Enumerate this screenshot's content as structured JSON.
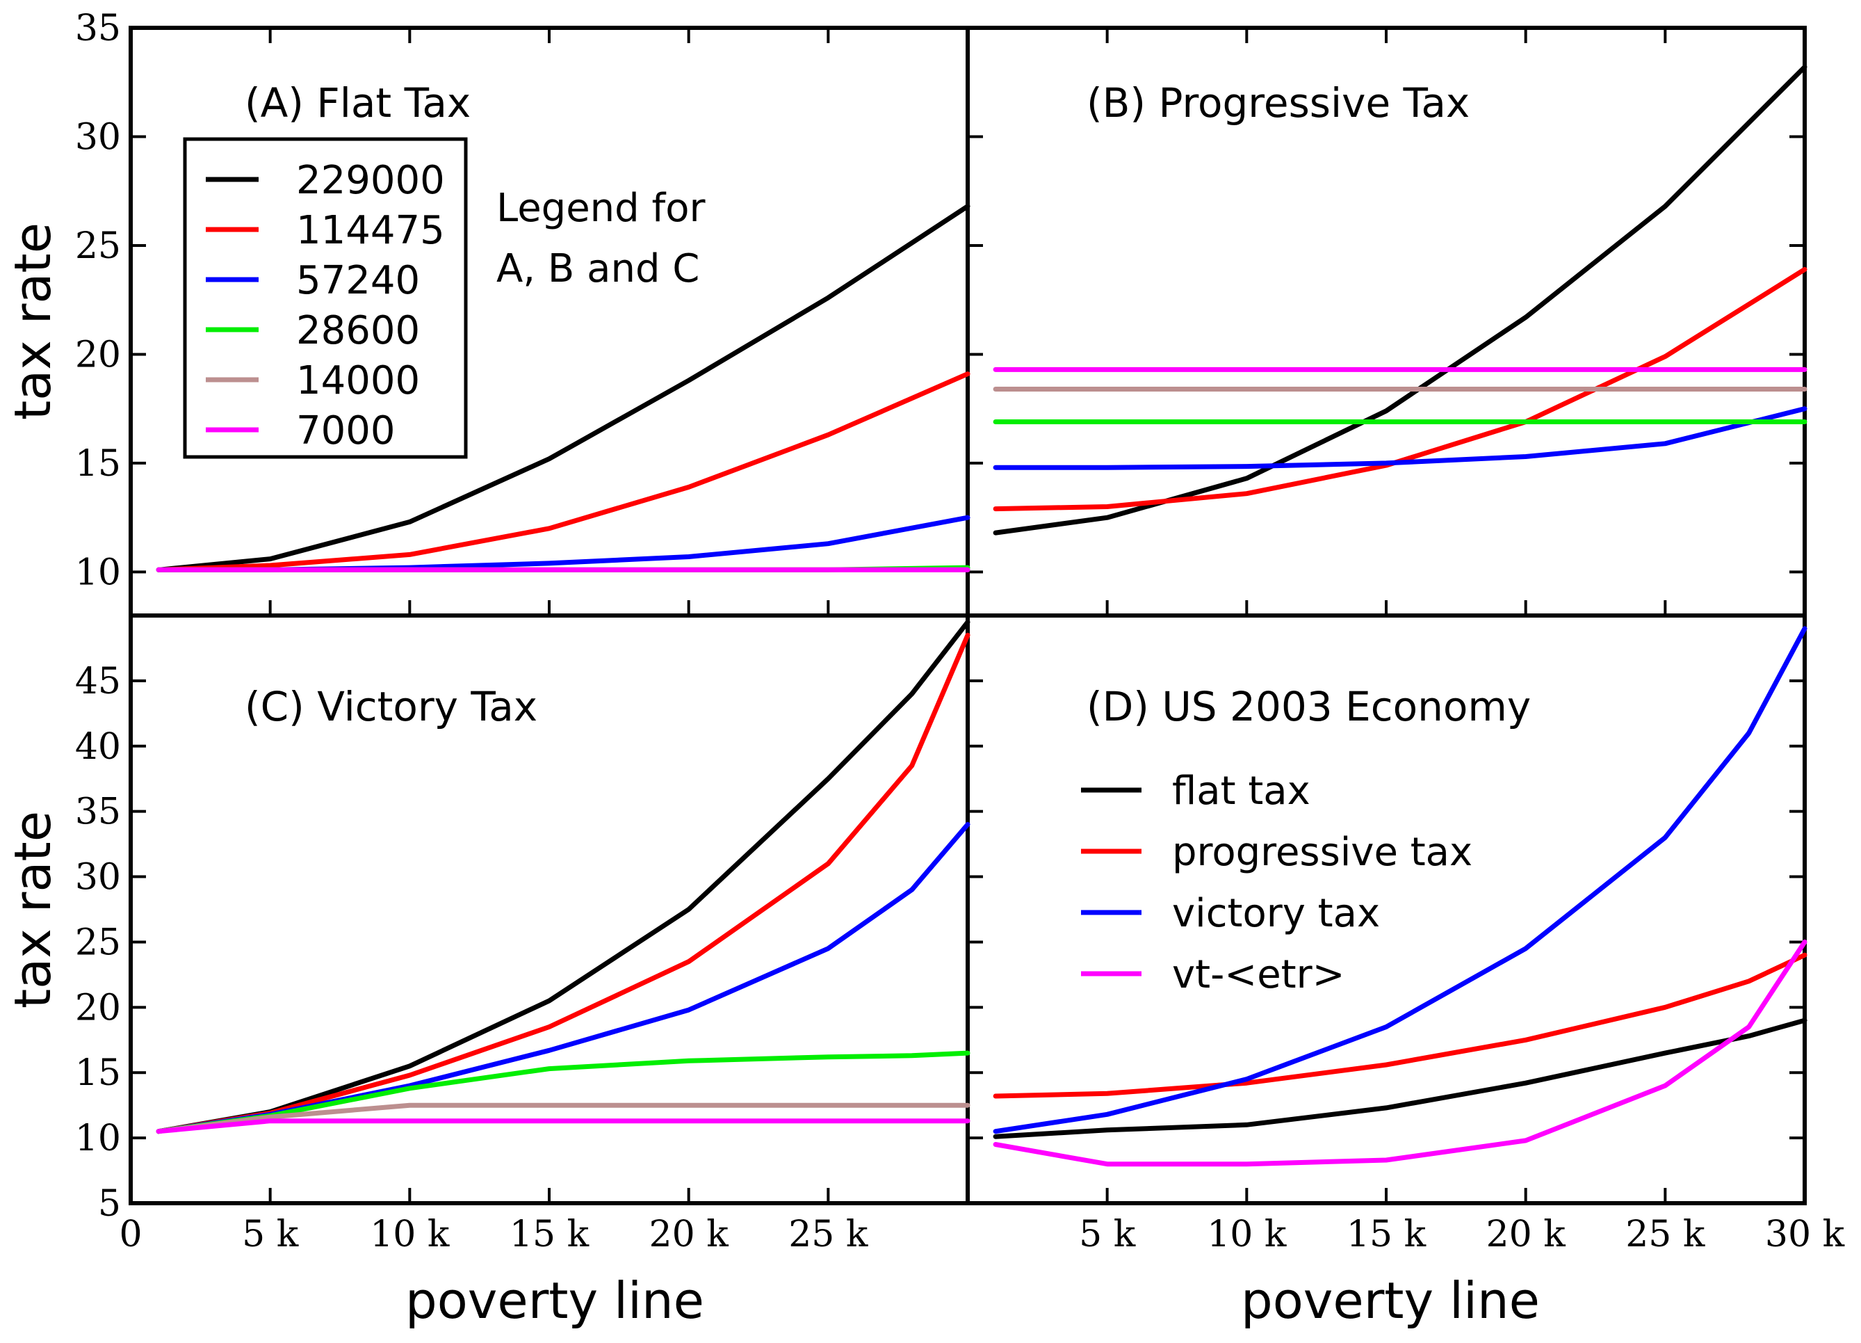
{
  "figure": {
    "x_axis_label": "poverty line",
    "y_axis_label": "tax rate",
    "shared_legend": {
      "note_line1": "Legend for",
      "note_line2": "A, B and C",
      "entries": [
        {
          "label": "229000",
          "color": "#000000"
        },
        {
          "label": "114475",
          "color": "#ff0000"
        },
        {
          "label": "57240",
          "color": "#0000ff"
        },
        {
          "label": "28600",
          "color": "#00ee00"
        },
        {
          "label": "14000",
          "color": "#bc8f8f"
        },
        {
          "label": "7000",
          "color": "#ff00ff"
        }
      ]
    },
    "panel_d_legend": [
      {
        "label": "flat tax",
        "color": "#000000"
      },
      {
        "label": "progressive tax",
        "color": "#ff0000"
      },
      {
        "label": "victory tax",
        "color": "#0000ff"
      },
      {
        "label": "vt-<etr>",
        "color": "#ff00ff"
      }
    ]
  },
  "chart_data": [
    {
      "panel": "A",
      "type": "line",
      "title": "(A) Flat Tax",
      "xlabel": "",
      "ylabel": "tax rate",
      "xlim": [
        0,
        30000
      ],
      "ylim": [
        8,
        35
      ],
      "yticks": [
        10,
        15,
        20,
        25,
        30,
        35
      ],
      "ytick_labels": [
        "10",
        "15",
        "20",
        "25",
        "30",
        "35"
      ],
      "x": [
        1000,
        5000,
        10000,
        15000,
        20000,
        25000,
        30000
      ],
      "series": [
        {
          "name": "229000",
          "values": [
            10.1,
            10.6,
            12.3,
            15.2,
            18.8,
            22.6,
            26.8
          ]
        },
        {
          "name": "114475",
          "values": [
            10.1,
            10.3,
            10.8,
            12.0,
            13.9,
            16.3,
            19.1
          ]
        },
        {
          "name": "57240",
          "values": [
            10.1,
            10.1,
            10.2,
            10.4,
            10.7,
            11.3,
            12.5
          ]
        },
        {
          "name": "28600",
          "values": [
            10.1,
            10.1,
            10.1,
            10.1,
            10.1,
            10.1,
            10.2
          ]
        },
        {
          "name": "14000",
          "values": [
            10.1,
            10.1,
            10.1,
            10.1,
            10.1,
            10.1,
            10.1
          ]
        },
        {
          "name": "7000",
          "values": [
            10.1,
            10.1,
            10.1,
            10.1,
            10.1,
            10.1,
            10.1
          ]
        }
      ]
    },
    {
      "panel": "B",
      "type": "line",
      "title": "(B) Progressive Tax",
      "xlabel": "",
      "ylabel": "",
      "xlim": [
        0,
        30000
      ],
      "ylim": [
        8,
        35
      ],
      "x": [
        1000,
        5000,
        10000,
        15000,
        20000,
        25000,
        30000
      ],
      "series": [
        {
          "name": "229000",
          "values": [
            11.8,
            12.5,
            14.3,
            17.4,
            21.7,
            26.8,
            33.2
          ]
        },
        {
          "name": "114475",
          "values": [
            12.9,
            13.0,
            13.6,
            14.9,
            16.9,
            19.9,
            23.9
          ]
        },
        {
          "name": "57240",
          "values": [
            14.8,
            14.8,
            14.85,
            15.0,
            15.3,
            15.9,
            17.5
          ]
        },
        {
          "name": "28600",
          "values": [
            16.9,
            16.9,
            16.9,
            16.9,
            16.9,
            16.9,
            16.9
          ]
        },
        {
          "name": "14000",
          "values": [
            18.4,
            18.4,
            18.4,
            18.4,
            18.4,
            18.4,
            18.4
          ]
        },
        {
          "name": "7000",
          "values": [
            19.3,
            19.3,
            19.3,
            19.3,
            19.3,
            19.3,
            19.3
          ]
        }
      ]
    },
    {
      "panel": "C",
      "type": "line",
      "title": "(C) Victory Tax",
      "xlabel": "poverty line",
      "ylabel": "tax rate",
      "xlim": [
        0,
        30000
      ],
      "ylim": [
        5,
        50
      ],
      "xticks": [
        0,
        5000,
        10000,
        15000,
        20000,
        25000
      ],
      "xtick_labels": [
        "0",
        "5 k",
        "10 k",
        "15 k",
        "20 k",
        "25 k"
      ],
      "yticks": [
        5,
        10,
        15,
        20,
        25,
        30,
        35,
        40,
        45
      ],
      "ytick_labels": [
        "5",
        "10",
        "15",
        "20",
        "25",
        "30",
        "35",
        "40",
        "45"
      ],
      "x": [
        1000,
        5000,
        10000,
        15000,
        20000,
        25000,
        28000,
        30000
      ],
      "series": [
        {
          "name": "229000",
          "values": [
            10.5,
            12.0,
            15.5,
            20.5,
            27.5,
            37.5,
            44.0,
            49.5
          ]
        },
        {
          "name": "114475",
          "values": [
            10.5,
            11.9,
            14.8,
            18.5,
            23.5,
            31.0,
            38.5,
            48.5
          ]
        },
        {
          "name": "57240",
          "values": [
            10.5,
            11.8,
            14.0,
            16.7,
            19.8,
            24.5,
            29.0,
            34.0
          ]
        },
        {
          "name": "28600",
          "values": [
            10.5,
            11.7,
            13.8,
            15.3,
            15.9,
            16.2,
            16.3,
            16.5
          ]
        },
        {
          "name": "14000",
          "values": [
            10.5,
            11.6,
            12.5,
            12.5,
            12.5,
            12.5,
            12.5,
            12.5
          ]
        },
        {
          "name": "7000",
          "values": [
            10.5,
            11.3,
            11.3,
            11.3,
            11.3,
            11.3,
            11.3,
            11.3
          ]
        }
      ]
    },
    {
      "panel": "D",
      "type": "line",
      "title": "(D) US 2003 Economy",
      "xlabel": "poverty line",
      "ylabel": "",
      "xlim": [
        0,
        30000
      ],
      "ylim": [
        5,
        50
      ],
      "xticks": [
        5000,
        10000,
        15000,
        20000,
        25000,
        30000
      ],
      "xtick_labels": [
        "5 k",
        "10 k",
        "15 k",
        "20 k",
        "25 k",
        "30 k"
      ],
      "x": [
        1000,
        5000,
        10000,
        15000,
        20000,
        25000,
        28000,
        30000
      ],
      "series": [
        {
          "name": "flat tax",
          "values": [
            10.1,
            10.6,
            11.0,
            12.3,
            14.2,
            16.5,
            17.8,
            19.0
          ]
        },
        {
          "name": "progressive tax",
          "values": [
            13.2,
            13.4,
            14.2,
            15.6,
            17.5,
            20.0,
            22.0,
            24.0
          ]
        },
        {
          "name": "victory tax",
          "values": [
            10.5,
            11.8,
            14.5,
            18.5,
            24.5,
            33.0,
            41.0,
            49.0
          ]
        },
        {
          "name": "vt-<etr>",
          "values": [
            9.5,
            8.0,
            8.0,
            8.3,
            9.8,
            14.0,
            18.5,
            25.0
          ]
        }
      ]
    }
  ]
}
